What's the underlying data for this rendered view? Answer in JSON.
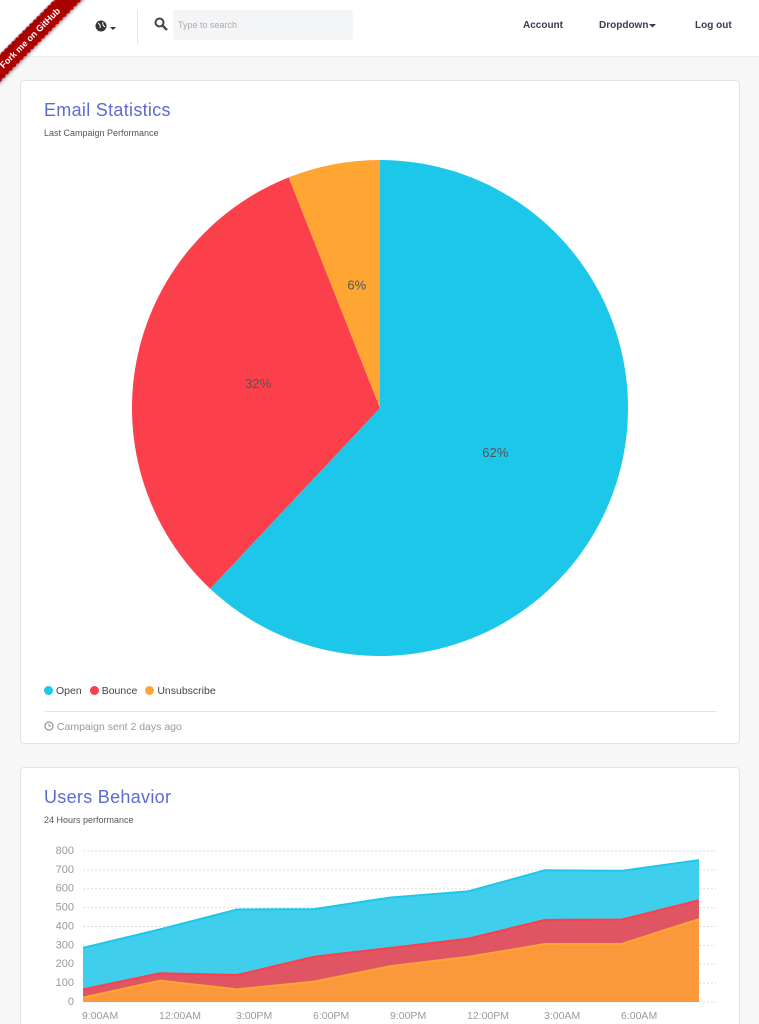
{
  "nav": {
    "ribbon": "Fork me on GitHub",
    "search_placeholder": "Type to search",
    "links": [
      "Account",
      "Dropdown",
      "Log out"
    ]
  },
  "cards": [
    {
      "footer": "Campaign sent 2 days ago"
    }
  ],
  "chart_data": [
    {
      "type": "pie",
      "title": "Email Statistics",
      "subtitle": "Last Campaign Performance",
      "categories": [
        "Open",
        "Bounce",
        "Unsubscribe"
      ],
      "values": [
        62,
        32,
        6
      ],
      "value_labels": [
        "62%",
        "32%",
        "6%"
      ],
      "colors": [
        "#1dc7ea",
        "#fb404b",
        "#ffa534"
      ]
    },
    {
      "type": "area",
      "title": "Users Behavior",
      "subtitle": "24 Hours performance",
      "categories": [
        "9:00AM",
        "12:00AM",
        "3:00PM",
        "6:00PM",
        "9:00PM",
        "12:00PM",
        "3:00AM",
        "6:00AM",
        null
      ],
      "series": [
        {
          "color": "#1dc7ea",
          "values": [
            287,
            385,
            490,
            492,
            554,
            586,
            698,
            695,
            752
          ]
        },
        {
          "color": "#fb404b",
          "values": [
            67,
            152,
            143,
            240,
            287,
            335,
            435,
            437,
            539
          ]
        },
        {
          "color": "#ffa534",
          "values": [
            23,
            113,
            67,
            108,
            190,
            239,
            307,
            308,
            439
          ]
        }
      ],
      "ylim": [
        0,
        800
      ],
      "yticks": [
        0,
        100,
        200,
        300,
        400,
        500,
        600,
        700,
        800
      ],
      "grid": true
    }
  ]
}
